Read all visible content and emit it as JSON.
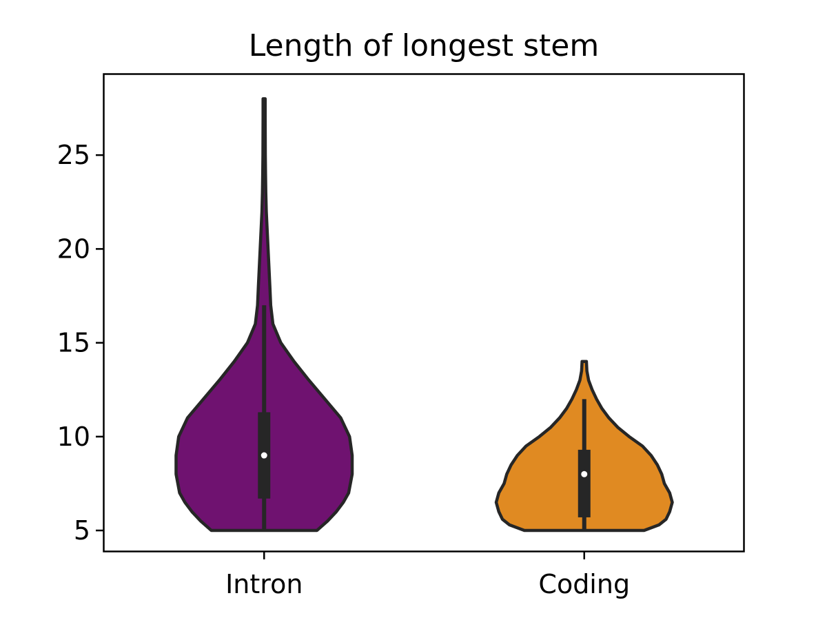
{
  "chart_data": {
    "type": "violin",
    "title": "Length of longest stem",
    "xlabel": "",
    "ylabel": "",
    "categories": [
      "Intron",
      "Coding"
    ],
    "ylim": [
      3.9,
      29.3
    ],
    "yticks": [
      5,
      10,
      15,
      20,
      25
    ],
    "grid": false,
    "legend": "none",
    "series": [
      {
        "category": "Intron",
        "color": "#6f1270",
        "min": 5,
        "max": 28,
        "q1": 6.7,
        "median": 9,
        "q3": 11.3,
        "whisker_low": 5,
        "whisker_high": 17,
        "density": [
          [
            5,
            0.6
          ],
          [
            5.5,
            0.72
          ],
          [
            6,
            0.82
          ],
          [
            6.5,
            0.9
          ],
          [
            7,
            0.96
          ],
          [
            8,
            1.0
          ],
          [
            9,
            1.0
          ],
          [
            10,
            0.97
          ],
          [
            11,
            0.87
          ],
          [
            12,
            0.69
          ],
          [
            13,
            0.51
          ],
          [
            14,
            0.34
          ],
          [
            15,
            0.19
          ],
          [
            16,
            0.1
          ],
          [
            17,
            0.075
          ],
          [
            18,
            0.065
          ],
          [
            19,
            0.055
          ],
          [
            20,
            0.045
          ],
          [
            21,
            0.035
          ],
          [
            22,
            0.025
          ],
          [
            23,
            0.019
          ],
          [
            24,
            0.016
          ],
          [
            25,
            0.014
          ],
          [
            26,
            0.013
          ],
          [
            27,
            0.012
          ],
          [
            28,
            0.012
          ]
        ]
      },
      {
        "category": "Coding",
        "color": "#e08a22",
        "min": 5,
        "max": 14,
        "q1": 5.7,
        "median": 8,
        "q3": 9.3,
        "whisker_low": 5,
        "whisker_high": 12,
        "density": [
          [
            5,
            0.68
          ],
          [
            5.3,
            0.85
          ],
          [
            5.6,
            0.93
          ],
          [
            6,
            0.97
          ],
          [
            6.5,
            1.0
          ],
          [
            7,
            0.97
          ],
          [
            7.5,
            0.91
          ],
          [
            8,
            0.88
          ],
          [
            8.5,
            0.83
          ],
          [
            9,
            0.76
          ],
          [
            9.5,
            0.66
          ],
          [
            10,
            0.51
          ],
          [
            10.5,
            0.38
          ],
          [
            11,
            0.28
          ],
          [
            11.5,
            0.2
          ],
          [
            12,
            0.14
          ],
          [
            12.5,
            0.09
          ],
          [
            13,
            0.05
          ],
          [
            13.5,
            0.03
          ],
          [
            14,
            0.025
          ]
        ]
      }
    ]
  }
}
